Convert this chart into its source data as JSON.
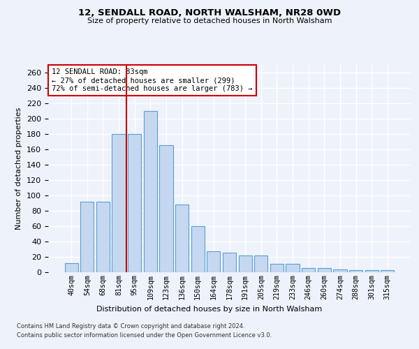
{
  "title1": "12, SENDALL ROAD, NORTH WALSHAM, NR28 0WD",
  "title2": "Size of property relative to detached houses in North Walsham",
  "xlabel": "Distribution of detached houses by size in North Walsham",
  "ylabel": "Number of detached properties",
  "categories": [
    "40sqm",
    "54sqm",
    "68sqm",
    "81sqm",
    "95sqm",
    "109sqm",
    "123sqm",
    "136sqm",
    "150sqm",
    "164sqm",
    "178sqm",
    "191sqm",
    "205sqm",
    "219sqm",
    "233sqm",
    "246sqm",
    "260sqm",
    "274sqm",
    "288sqm",
    "301sqm",
    "315sqm"
  ],
  "values": [
    12,
    92,
    92,
    180,
    180,
    210,
    165,
    88,
    60,
    27,
    25,
    22,
    22,
    11,
    11,
    5,
    5,
    4,
    3,
    3,
    3
  ],
  "bar_color": "#c5d8f0",
  "bar_edge_color": "#5a9fd4",
  "annotation_line1": "12 SENDALL ROAD: 83sqm",
  "annotation_line2": "← 27% of detached houses are smaller (299)",
  "annotation_line3": "72% of semi-detached houses are larger (783) →",
  "vline_x": 3.5,
  "vline_color": "#cc0000",
  "ylim": [
    0,
    270
  ],
  "yticks": [
    0,
    20,
    40,
    60,
    80,
    100,
    120,
    140,
    160,
    180,
    200,
    220,
    240,
    260
  ],
  "background_color": "#eef2fa",
  "grid_color": "#ffffff",
  "footer1": "Contains HM Land Registry data © Crown copyright and database right 2024.",
  "footer2": "Contains public sector information licensed under the Open Government Licence v3.0."
}
